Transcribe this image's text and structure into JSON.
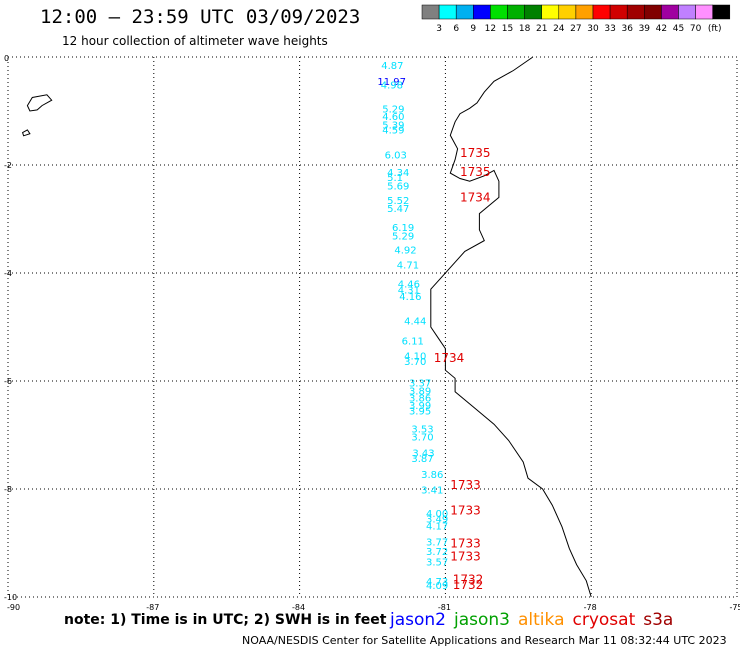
{
  "header": {
    "title": "12:00 – 23:59 UTC 03/09/2023",
    "subtitle": "12 hour collection of altimeter wave heights"
  },
  "colorbar": {
    "unit": "(ft)",
    "colors": [
      "#808080",
      "#00ffff",
      "#00b0f0",
      "#0000ff",
      "#00e000",
      "#00b000",
      "#008000",
      "#ffff00",
      "#ffd000",
      "#ffa000",
      "#ff0000",
      "#d00000",
      "#a00000",
      "#800000",
      "#a000a0",
      "#c080ff",
      "#ff90ff",
      "#000000"
    ],
    "labels": [
      "3",
      "6",
      "9",
      "12",
      "15",
      "18",
      "21",
      "24",
      "27",
      "30",
      "33",
      "36",
      "39",
      "42",
      "45",
      "70"
    ]
  },
  "map": {
    "lat_range": [
      -10,
      0
    ],
    "lon_range": [
      -90,
      -75
    ],
    "lat_ticks": [
      "0",
      "-2",
      "-4",
      "-6",
      "-8",
      "-10"
    ],
    "lon_ticks": [
      "-90",
      "-87",
      "-84",
      "-81",
      "-78",
      "-75"
    ],
    "coast_color": "#000000",
    "grid_color": "#000000"
  },
  "observations": [
    {
      "text": "4.87",
      "lon": -82.32,
      "lat": -0.22,
      "color": "#00e0ff"
    },
    {
      "text": "11.97",
      "lon": -82.4,
      "lat": -0.52,
      "color": "#0000ff"
    },
    {
      "text": "4.98",
      "lon": -82.33,
      "lat": -0.58,
      "color": "#00e0ff"
    },
    {
      "text": "5.29",
      "lon": -82.3,
      "lat": -1.03,
      "color": "#00e0ff"
    },
    {
      "text": "4.60",
      "lon": -82.3,
      "lat": -1.17,
      "color": "#00e0ff"
    },
    {
      "text": "5.39",
      "lon": -82.3,
      "lat": -1.32,
      "color": "#00e0ff"
    },
    {
      "text": "4.59",
      "lon": -82.3,
      "lat": -1.42,
      "color": "#00e0ff"
    },
    {
      "text": "6.03",
      "lon": -82.25,
      "lat": -1.88,
      "color": "#00e0ff"
    },
    {
      "text": "4.34",
      "lon": -82.2,
      "lat": -2.2,
      "color": "#00e0ff"
    },
    {
      "text": "5.1",
      "lon": -82.2,
      "lat": -2.3,
      "color": "#00e0ff"
    },
    {
      "text": "5.69",
      "lon": -82.2,
      "lat": -2.45,
      "color": "#00e0ff"
    },
    {
      "text": "5.52",
      "lon": -82.2,
      "lat": -2.72,
      "color": "#00e0ff"
    },
    {
      "text": "5.47",
      "lon": -82.2,
      "lat": -2.87,
      "color": "#00e0ff"
    },
    {
      "text": "6.19",
      "lon": -82.1,
      "lat": -3.22,
      "color": "#00e0ff"
    },
    {
      "text": "5.29",
      "lon": -82.1,
      "lat": -3.38,
      "color": "#00e0ff"
    },
    {
      "text": "4.92",
      "lon": -82.05,
      "lat": -3.64,
      "color": "#00e0ff"
    },
    {
      "text": "4.71",
      "lon": -82.0,
      "lat": -3.92,
      "color": "#00e0ff"
    },
    {
      "text": "4.46",
      "lon": -81.98,
      "lat": -4.27,
      "color": "#00e0ff"
    },
    {
      "text": "4.31",
      "lon": -81.98,
      "lat": -4.38,
      "color": "#00e0ff"
    },
    {
      "text": "4.16",
      "lon": -81.95,
      "lat": -4.5,
      "color": "#00e0ff"
    },
    {
      "text": "4.44",
      "lon": -81.85,
      "lat": -4.95,
      "color": "#00e0ff"
    },
    {
      "text": "6.11",
      "lon": -81.9,
      "lat": -5.32,
      "color": "#00e0ff"
    },
    {
      "text": "4.10",
      "lon": -81.85,
      "lat": -5.6,
      "color": "#00e0ff"
    },
    {
      "text": "3.70",
      "lon": -81.85,
      "lat": -5.7,
      "color": "#00e0ff"
    },
    {
      "text": "3.37",
      "lon": -81.75,
      "lat": -6.1,
      "color": "#00e0ff"
    },
    {
      "text": "3.89",
      "lon": -81.75,
      "lat": -6.25,
      "color": "#00e0ff"
    },
    {
      "text": "3.86",
      "lon": -81.75,
      "lat": -6.38,
      "color": "#00e0ff"
    },
    {
      "text": "3.99",
      "lon": -81.75,
      "lat": -6.52,
      "color": "#00e0ff"
    },
    {
      "text": "3.95",
      "lon": -81.75,
      "lat": -6.62,
      "color": "#00e0ff"
    },
    {
      "text": "3.53",
      "lon": -81.7,
      "lat": -6.95,
      "color": "#00e0ff"
    },
    {
      "text": "3.70",
      "lon": -81.7,
      "lat": -7.1,
      "color": "#00e0ff"
    },
    {
      "text": "3.43",
      "lon": -81.68,
      "lat": -7.4,
      "color": "#00e0ff"
    },
    {
      "text": "3.87",
      "lon": -81.7,
      "lat": -7.5,
      "color": "#00e0ff"
    },
    {
      "text": "3.86",
      "lon": -81.5,
      "lat": -7.8,
      "color": "#00e0ff"
    },
    {
      "text": "3.41",
      "lon": -81.5,
      "lat": -8.08,
      "color": "#00e0ff"
    },
    {
      "text": "4.00",
      "lon": -81.4,
      "lat": -8.52,
      "color": "#00e0ff"
    },
    {
      "text": "3.49",
      "lon": -81.4,
      "lat": -8.62,
      "color": "#00e0ff"
    },
    {
      "text": "4.17",
      "lon": -81.4,
      "lat": -8.75,
      "color": "#00e0ff"
    },
    {
      "text": "3.77",
      "lon": -81.4,
      "lat": -9.05,
      "color": "#00e0ff"
    },
    {
      "text": "3.72",
      "lon": -81.4,
      "lat": -9.22,
      "color": "#00e0ff"
    },
    {
      "text": "3.57",
      "lon": -81.4,
      "lat": -9.42,
      "color": "#00e0ff"
    },
    {
      "text": "4.73",
      "lon": -81.4,
      "lat": -9.78,
      "color": "#00e0ff"
    },
    {
      "text": "4.09",
      "lon": -81.4,
      "lat": -9.85,
      "color": "#00e0ff"
    },
    {
      "text": "1735",
      "lon": -80.7,
      "lat": -1.85,
      "color": "#e00000",
      "big": true
    },
    {
      "text": "1735",
      "lon": -80.7,
      "lat": -2.2,
      "color": "#e00000",
      "big": true
    },
    {
      "text": "1734",
      "lon": -80.7,
      "lat": -2.68,
      "color": "#e00000",
      "big": true
    },
    {
      "text": "1734",
      "lon": -81.24,
      "lat": -5.65,
      "color": "#e00000",
      "big": true
    },
    {
      "text": "1733",
      "lon": -80.9,
      "lat": -8.0,
      "color": "#e00000",
      "big": true
    },
    {
      "text": "1733",
      "lon": -80.9,
      "lat": -8.47,
      "color": "#e00000",
      "big": true
    },
    {
      "text": "1733",
      "lon": -80.9,
      "lat": -9.08,
      "color": "#e00000",
      "big": true
    },
    {
      "text": "1733",
      "lon": -80.9,
      "lat": -9.32,
      "color": "#e00000",
      "big": true
    },
    {
      "text": "1732",
      "lon": -80.85,
      "lat": -9.75,
      "color": "#e00000",
      "big": true
    },
    {
      "text": "1732",
      "lon": -80.85,
      "lat": -9.85,
      "color": "#e00000",
      "big": true
    }
  ],
  "coast": [
    [
      -79.2,
      0.0
    ],
    [
      -79.6,
      -0.25
    ],
    [
      -80.0,
      -0.45
    ],
    [
      -80.2,
      -0.65
    ],
    [
      -80.35,
      -0.85
    ],
    [
      -80.5,
      -0.95
    ],
    [
      -80.7,
      -1.05
    ],
    [
      -80.8,
      -1.2
    ],
    [
      -80.9,
      -1.45
    ],
    [
      -80.75,
      -1.7
    ],
    [
      -80.8,
      -1.9
    ],
    [
      -80.9,
      -2.15
    ],
    [
      -80.7,
      -2.25
    ],
    [
      -80.5,
      -2.3
    ],
    [
      -80.2,
      -2.2
    ],
    [
      -80.0,
      -2.1
    ],
    [
      -79.9,
      -2.3
    ],
    [
      -79.9,
      -2.6
    ],
    [
      -80.3,
      -2.9
    ],
    [
      -80.3,
      -3.2
    ],
    [
      -80.2,
      -3.4
    ],
    [
      -80.6,
      -3.6
    ],
    [
      -80.9,
      -3.9
    ],
    [
      -81.1,
      -4.1
    ],
    [
      -81.3,
      -4.3
    ],
    [
      -81.3,
      -4.6
    ],
    [
      -81.3,
      -5.0
    ],
    [
      -81.15,
      -5.2
    ],
    [
      -81.0,
      -5.4
    ],
    [
      -81.0,
      -5.8
    ],
    [
      -80.8,
      -5.95
    ],
    [
      -80.8,
      -6.2
    ],
    [
      -80.4,
      -6.5
    ],
    [
      -80.0,
      -6.8
    ],
    [
      -79.7,
      -7.1
    ],
    [
      -79.4,
      -7.5
    ],
    [
      -79.3,
      -7.8
    ],
    [
      -79.0,
      -8.0
    ],
    [
      -78.8,
      -8.3
    ],
    [
      -78.6,
      -8.7
    ],
    [
      -78.45,
      -9.1
    ],
    [
      -78.3,
      -9.4
    ],
    [
      -78.1,
      -9.7
    ],
    [
      -78.0,
      -10.0
    ]
  ],
  "island_main": [
    [
      -89.6,
      -0.9
    ],
    [
      -89.5,
      -0.75
    ],
    [
      -89.2,
      -0.7
    ],
    [
      -89.1,
      -0.8
    ],
    [
      -89.3,
      -0.9
    ],
    [
      -89.4,
      -0.98
    ],
    [
      -89.55,
      -1.0
    ]
  ],
  "island_small": [
    [
      -89.7,
      -1.4
    ],
    [
      -89.6,
      -1.35
    ],
    [
      -89.55,
      -1.42
    ],
    [
      -89.68,
      -1.46
    ]
  ],
  "footer": {
    "note": "note:  1) Time is in UTC;  2) SWH is in feet",
    "credit": "NOAA/NESDIS Center for Satellite Applications and Research    Mar 11 08:32:44 UTC 2023"
  },
  "satellites": [
    {
      "name": "jason2",
      "color": "#0000ff"
    },
    {
      "name": "jason3",
      "color": "#00a000"
    },
    {
      "name": "altika",
      "color": "#ff9000"
    },
    {
      "name": "cryosat",
      "color": "#e00000"
    },
    {
      "name": "s3a",
      "color": "#a00000"
    }
  ]
}
